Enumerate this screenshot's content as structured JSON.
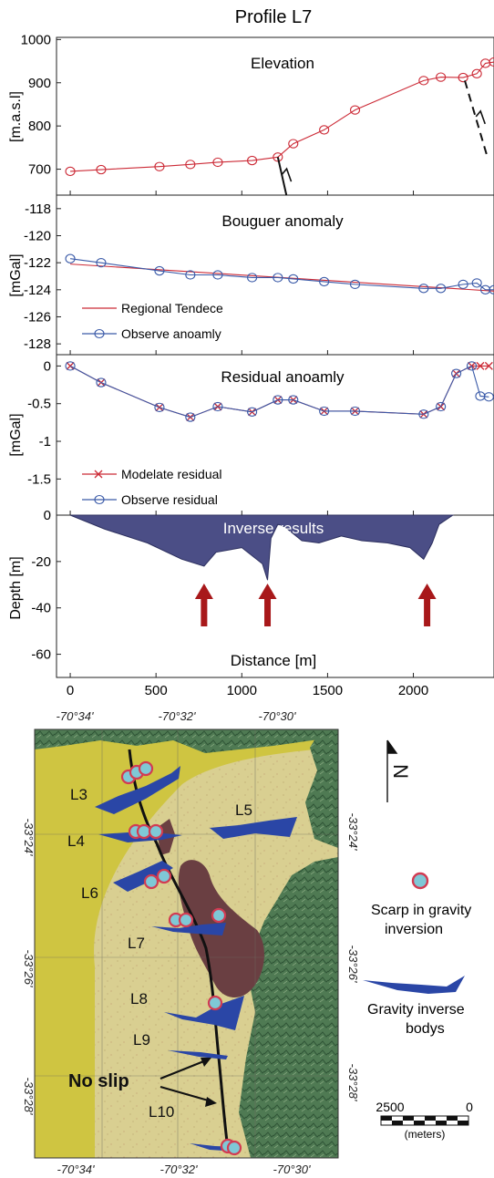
{
  "figure": {
    "title": "Profile L7",
    "x_axis_label": "Distance [m]"
  },
  "chart_data": [
    {
      "type": "line",
      "panel": "Elevation",
      "title": "Elevation",
      "ylabel": "[m.a.s.l]",
      "ylim": [
        640,
        1005
      ],
      "yticks": [
        700,
        800,
        900,
        1000
      ],
      "xlim": [
        -80,
        2470
      ],
      "xticks": [
        0,
        500,
        1000,
        1500,
        2000
      ],
      "series": [
        {
          "x": [
            0,
            180,
            520,
            700,
            860,
            1060,
            1210,
            1300,
            1480,
            1660,
            2060,
            2160,
            2290,
            2370,
            2420,
            2470
          ],
          "y": [
            695,
            699,
            706,
            711,
            716,
            720,
            728,
            759,
            791,
            837,
            905,
            913,
            912,
            921,
            945,
            948
          ],
          "color": "#cc2a36",
          "marker": "o"
        }
      ],
      "faults": [
        {
          "x1": 1210,
          "y1": 728,
          "x2": 1260,
          "y2": 640,
          "style": "solid"
        },
        {
          "x1": 2300,
          "y1": 905,
          "x2": 2430,
          "y2": 730,
          "style": "dashed"
        }
      ]
    },
    {
      "type": "line",
      "panel": "Bouguer",
      "title": "Bouguer anomaly",
      "ylabel": "[mGal]",
      "ylim": [
        -128.8,
        -117
      ],
      "yticks": [
        -118,
        -120,
        -122,
        -124,
        -126,
        -128
      ],
      "xlim": [
        -80,
        2470
      ],
      "legend": "bottom-left",
      "series": [
        {
          "name": "Regional Tendece",
          "color": "#cc2a36",
          "marker": "none",
          "x": [
            0,
            2470
          ],
          "y": [
            -122.1,
            -124.1
          ]
        },
        {
          "name": "Observe anoamly",
          "color": "#3a5aa8",
          "marker": "o",
          "x": [
            0,
            180,
            520,
            700,
            860,
            1060,
            1210,
            1300,
            1480,
            1660,
            2060,
            2160,
            2290,
            2370,
            2420,
            2470
          ],
          "y": [
            -121.7,
            -122.0,
            -122.6,
            -122.9,
            -122.9,
            -123.1,
            -123.1,
            -123.2,
            -123.4,
            -123.6,
            -123.9,
            -123.9,
            -123.6,
            -123.5,
            -124.0,
            -124.0
          ]
        }
      ]
    },
    {
      "type": "line",
      "panel": "Residual",
      "title": "Residual anoamly",
      "ylabel": "[mGal]",
      "ylim": [
        -1.98,
        0.15
      ],
      "yticks": [
        0,
        -0.5,
        -1,
        -1.5
      ],
      "yticklabels": [
        "0",
        "-0.5",
        "-1",
        "-1.5"
      ],
      "xlim": [
        -80,
        2470
      ],
      "legend": "bottom-left",
      "series": [
        {
          "name": "Modelate residual",
          "color": "#cc2a36",
          "marker": "x",
          "x": [
            0,
            180,
            520,
            700,
            860,
            1060,
            1210,
            1300,
            1480,
            1660,
            2060,
            2160,
            2250,
            2340,
            2390,
            2440
          ],
          "y": [
            0,
            -0.22,
            -0.55,
            -0.68,
            -0.54,
            -0.61,
            -0.45,
            -0.45,
            -0.6,
            -0.6,
            -0.64,
            -0.54,
            -0.1,
            0.0,
            0.0,
            0.0
          ]
        },
        {
          "name": "Observe residual",
          "color": "#3a5aa8",
          "marker": "o",
          "x": [
            0,
            180,
            520,
            700,
            860,
            1060,
            1210,
            1300,
            1480,
            1660,
            2060,
            2160,
            2250,
            2340,
            2390,
            2440
          ],
          "y": [
            0,
            -0.22,
            -0.55,
            -0.68,
            -0.54,
            -0.61,
            -0.45,
            -0.45,
            -0.6,
            -0.6,
            -0.64,
            -0.54,
            -0.1,
            0.0,
            -0.4,
            -0.41
          ]
        }
      ]
    },
    {
      "type": "area",
      "panel": "Inverse",
      "title": "Inverse results",
      "ylabel": "Depth [m]",
      "ylim": [
        -70,
        0
      ],
      "yticks": [
        0,
        -20,
        -40,
        -60
      ],
      "xlim": [
        -80,
        2470
      ],
      "xticks": [
        0,
        500,
        1000,
        1500,
        2000
      ],
      "fill_color": "#4b4e86",
      "x": [
        0,
        200,
        450,
        650,
        780,
        850,
        1000,
        1120,
        1150,
        1170,
        1210,
        1250,
        1350,
        1450,
        1580,
        1700,
        1850,
        1980,
        2060,
        2110,
        2150,
        2230
      ],
      "y": [
        0,
        -6,
        -12,
        -19,
        -22,
        -16,
        -14,
        -21,
        -28,
        -10,
        -4,
        -5,
        -11,
        -12,
        -9,
        -11,
        -12,
        -14,
        -19,
        -12,
        -4,
        0
      ],
      "arrows_at_x": [
        780,
        1150,
        2080
      ],
      "arrow_color": "#a8181a"
    }
  ],
  "map": {
    "top_ticks": [
      "-70°34'",
      "-70°32'",
      "-70°30'"
    ],
    "bottom_ticks": [
      "-70°34'",
      "-70°32'",
      "-70°30'"
    ],
    "left_ticks": [
      "-33°24'",
      "-33°26'",
      "-33°28'"
    ],
    "right_ticks": [
      "-33°24'",
      "-33°26'",
      "-33°28'"
    ],
    "profiles": [
      "L3",
      "L4",
      "L5",
      "L6",
      "L7",
      "L8",
      "L9",
      "L10"
    ],
    "no_slip_label": "No slip",
    "colors": {
      "yellow_unit": "#cfc541",
      "basin_fill": "#d9cf91",
      "mountains": "#4f7a53",
      "dark_unit": "#6a3f42",
      "gravity_body": "#2a46a6",
      "scarp_marker_fill": "#7fc8d6",
      "scarp_marker_stroke": "#d23b52"
    }
  },
  "legend": {
    "scarp": "Scarp in gravity inversion",
    "body": "Gravity inverse bodys",
    "scale_left": "2500",
    "scale_right": "0",
    "scale_unit": "(meters)",
    "north_label": "N"
  }
}
